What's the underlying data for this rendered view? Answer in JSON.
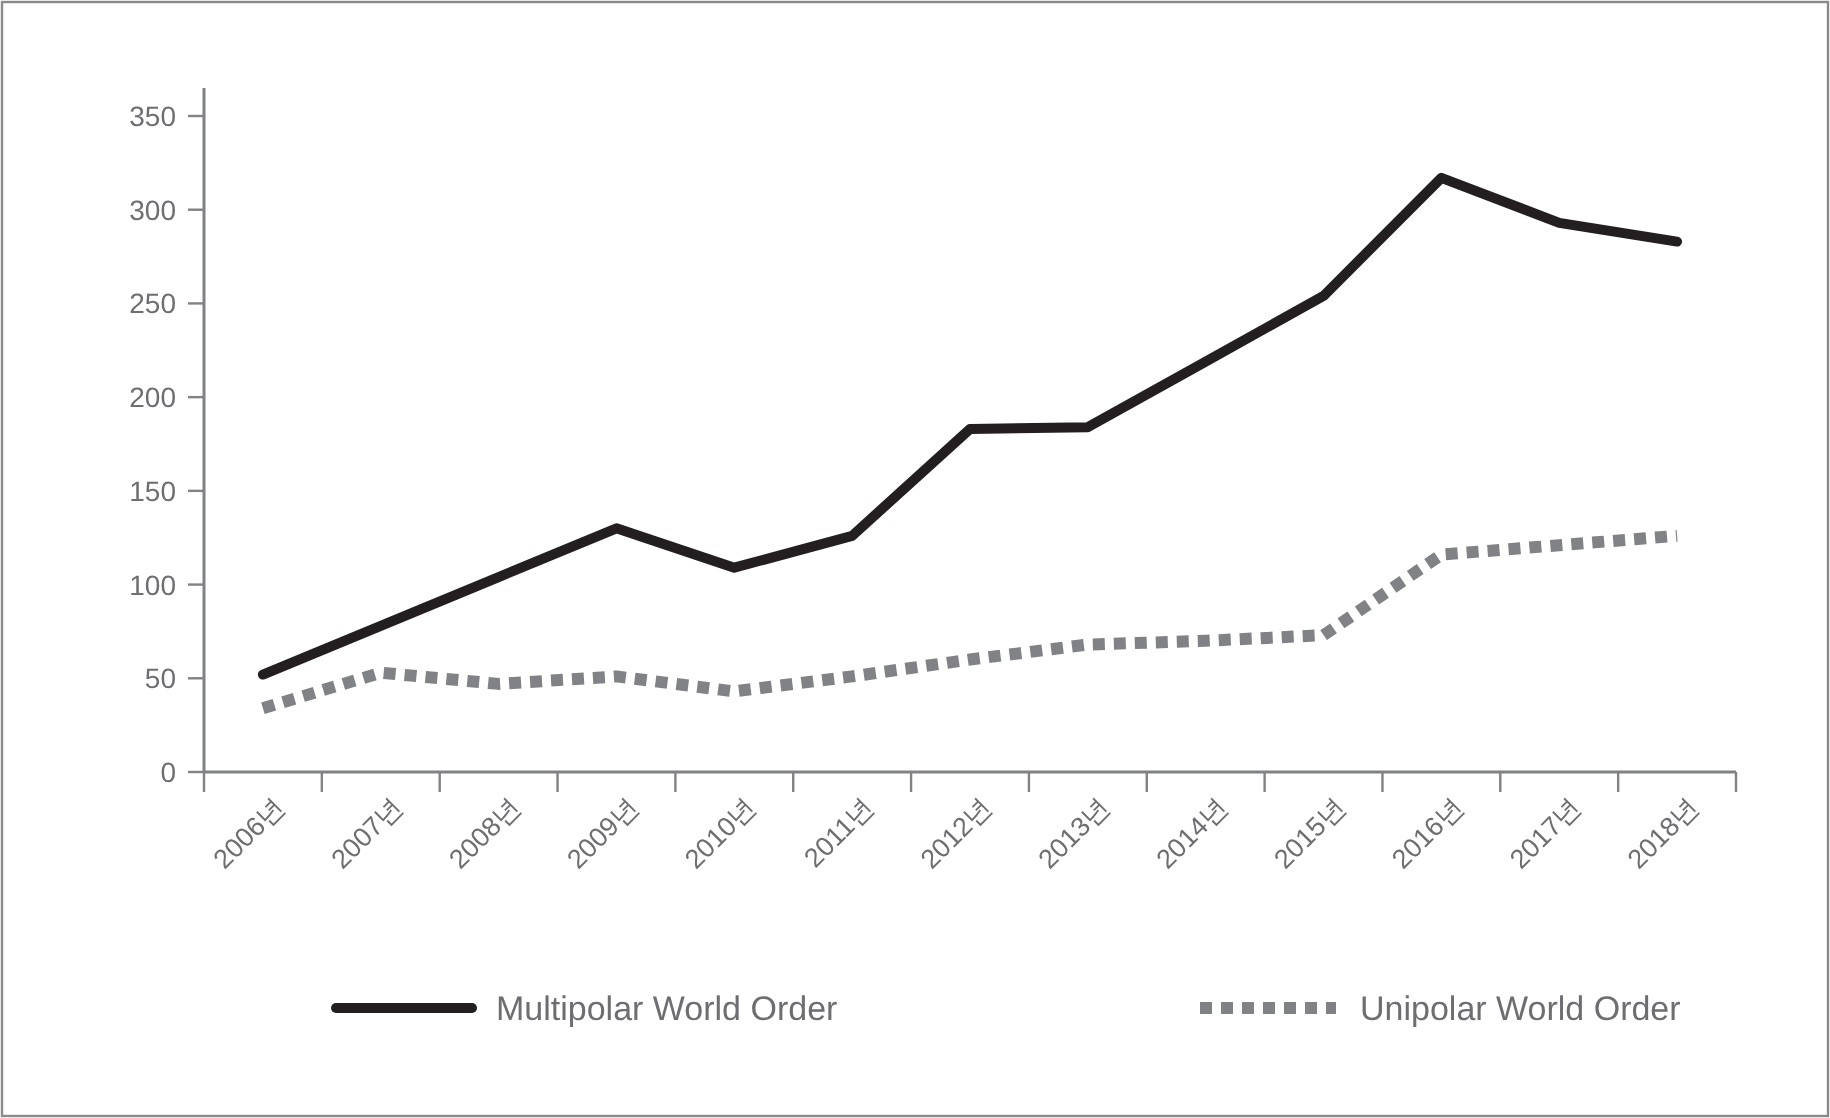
{
  "chart_data": {
    "type": "line",
    "categories": [
      "2006년",
      "2007년",
      "2008년",
      "2009년",
      "2010년",
      "2011년",
      "2012년",
      "2013년",
      "2014년",
      "2015년",
      "2016년",
      "2017년",
      "2018년"
    ],
    "series": [
      {
        "name": "Multipolar World Order",
        "color": "#231f20",
        "line_style": "solid",
        "values": [
          52,
          78,
          104,
          130,
          109,
          126,
          183,
          184,
          219,
          254,
          317,
          293,
          283
        ]
      },
      {
        "name": "Unipolar World Order",
        "color": "#818285",
        "line_style": "dotted",
        "values": [
          34,
          53,
          47,
          51,
          43,
          51,
          60,
          68,
          70,
          73,
          116,
          121,
          126
        ]
      }
    ],
    "ylim": [
      0,
      365
    ],
    "yticks": [
      0,
      50,
      100,
      150,
      200,
      250,
      300,
      350
    ],
    "legend": "bottom"
  }
}
